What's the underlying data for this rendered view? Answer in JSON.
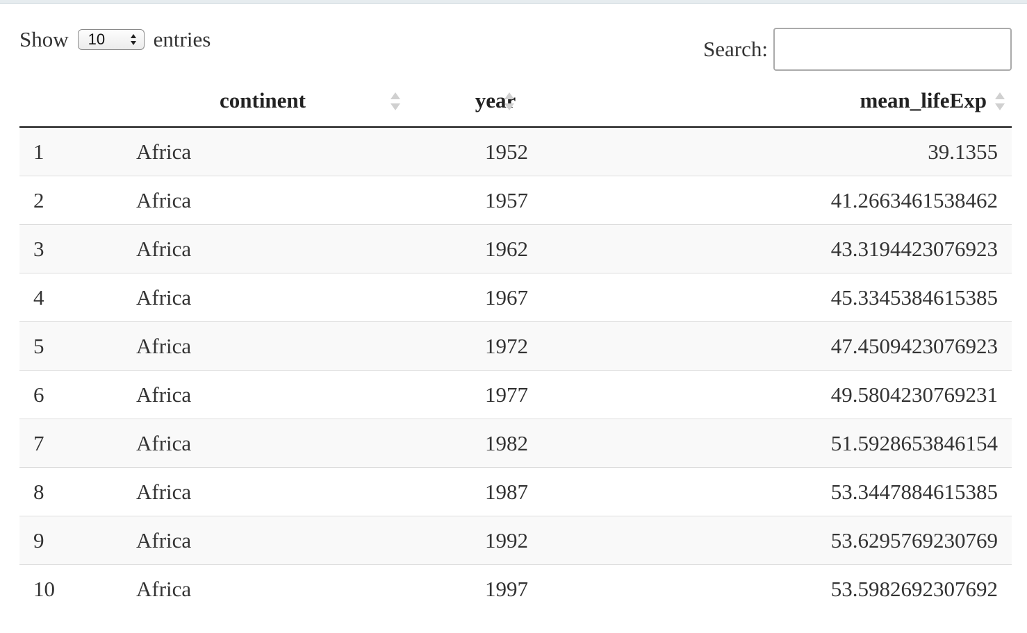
{
  "controls": {
    "show_label": "Show",
    "entries_label": "entries",
    "page_length_value": "10",
    "search_label": "Search:",
    "search_value": ""
  },
  "table": {
    "columns": [
      "",
      "continent",
      "year",
      "mean_lifeExp"
    ],
    "rows": [
      {
        "idx": "1",
        "continent": "Africa",
        "year": "1952",
        "mean_lifeExp": "39.1355"
      },
      {
        "idx": "2",
        "continent": "Africa",
        "year": "1957",
        "mean_lifeExp": "41.2663461538462"
      },
      {
        "idx": "3",
        "continent": "Africa",
        "year": "1962",
        "mean_lifeExp": "43.3194423076923"
      },
      {
        "idx": "4",
        "continent": "Africa",
        "year": "1967",
        "mean_lifeExp": "45.3345384615385"
      },
      {
        "idx": "5",
        "continent": "Africa",
        "year": "1972",
        "mean_lifeExp": "47.4509423076923"
      },
      {
        "idx": "6",
        "continent": "Africa",
        "year": "1977",
        "mean_lifeExp": "49.5804230769231"
      },
      {
        "idx": "7",
        "continent": "Africa",
        "year": "1982",
        "mean_lifeExp": "51.5928653846154"
      },
      {
        "idx": "8",
        "continent": "Africa",
        "year": "1987",
        "mean_lifeExp": "53.3447884615385"
      },
      {
        "idx": "9",
        "continent": "Africa",
        "year": "1992",
        "mean_lifeExp": "53.6295769230769"
      },
      {
        "idx": "10",
        "continent": "Africa",
        "year": "1997",
        "mean_lifeExp": "53.5982692307692"
      }
    ]
  },
  "colors": {
    "row_stripe": "#f9f9f9",
    "header_rule": "#111111",
    "row_rule": "#dddddd",
    "sort_icon": "#d0d0d0"
  }
}
